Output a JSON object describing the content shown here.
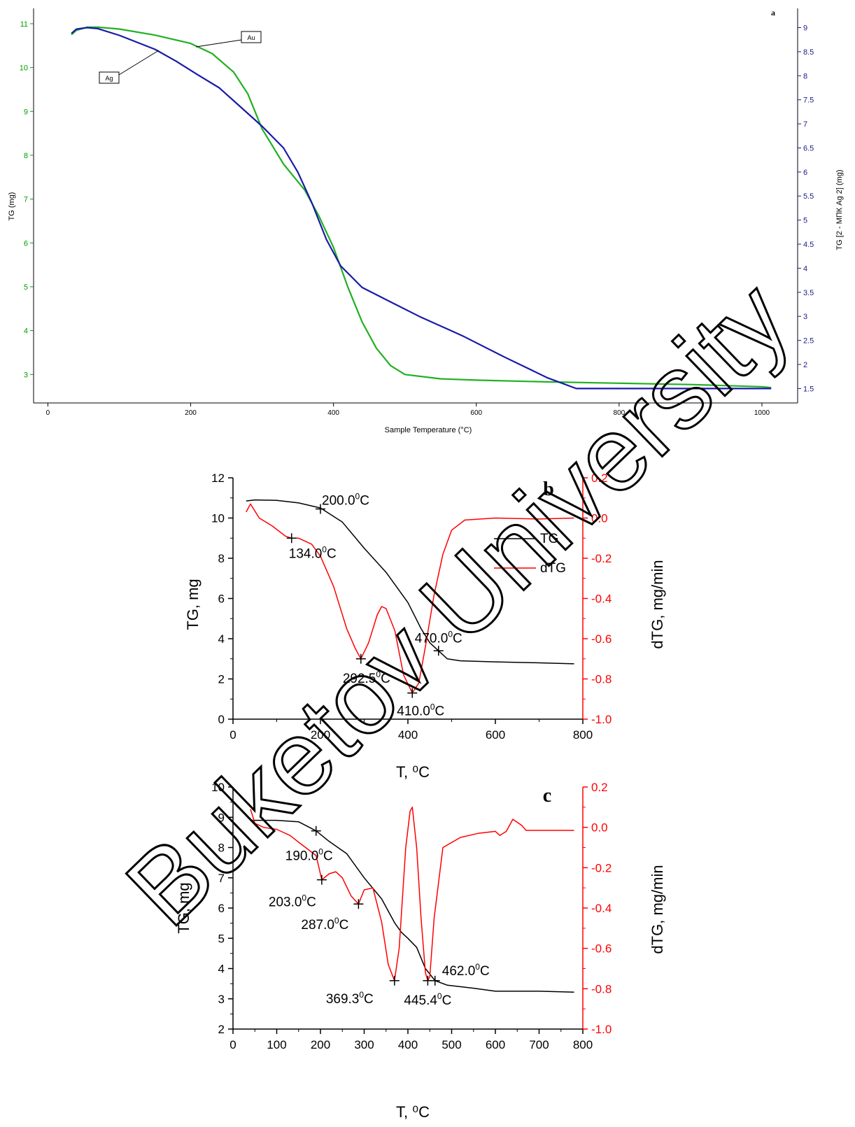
{
  "watermark": "Buketov University",
  "chart_data": [
    {
      "panel": "a",
      "type": "line",
      "xlabel": "Sample Temperature (°C)",
      "ylabel": "TG (mg)",
      "y2label": "TG [2 - МПК Ag 2] (mg)",
      "xlim": [
        -20,
        1050
      ],
      "ylim": [
        2.35,
        11.35
      ],
      "y2lim": [
        1.2,
        9.4
      ],
      "xticks": [
        0,
        200,
        400,
        600,
        800,
        1000
      ],
      "yticks": [
        3,
        4,
        5,
        6,
        7,
        8,
        9,
        10,
        11
      ],
      "y2ticks": [
        1.5,
        2,
        2.5,
        3,
        3.5,
        4,
        4.5,
        5,
        5.5,
        6,
        6.5,
        7,
        7.5,
        8,
        8.5,
        9
      ],
      "colors": {
        "y_axis": "#00a000",
        "y2_axis": "#1a1a8c"
      },
      "series": [
        {
          "name": "Au",
          "axis": "left",
          "color": "#22b022",
          "x": [
            33,
            40,
            55,
            70,
            100,
            150,
            200,
            230,
            260,
            280,
            300,
            330,
            360,
            380,
            400,
            420,
            440,
            460,
            480,
            500,
            550,
            600,
            700,
            800,
            900,
            1000,
            1013
          ],
          "y": [
            10.75,
            10.85,
            10.92,
            10.92,
            10.88,
            10.74,
            10.55,
            10.32,
            9.9,
            9.4,
            8.6,
            7.8,
            7.2,
            6.6,
            5.9,
            5.0,
            4.2,
            3.6,
            3.2,
            3.0,
            2.9,
            2.87,
            2.83,
            2.8,
            2.77,
            2.72,
            2.7
          ]
        },
        {
          "name": "Ag",
          "axis": "right",
          "color": "#1a1aa8",
          "x": [
            33,
            40,
            55,
            70,
            100,
            150,
            180,
            210,
            240,
            270,
            300,
            330,
            350,
            370,
            390,
            410,
            440,
            480,
            520,
            580,
            640,
            700,
            740,
            760,
            800,
            900,
            1000,
            1013
          ],
          "y": [
            8.88,
            8.97,
            9.0,
            8.98,
            8.84,
            8.55,
            8.3,
            8.02,
            7.75,
            7.35,
            6.95,
            6.5,
            6.0,
            5.35,
            4.6,
            4.05,
            3.6,
            3.3,
            3.0,
            2.6,
            2.15,
            1.72,
            1.5,
            1.5,
            1.5,
            1.5,
            1.5,
            1.5
          ]
        }
      ],
      "annotations": [
        {
          "text": "Au",
          "series": "Au"
        },
        {
          "text": "Ag",
          "series": "Ag"
        }
      ]
    },
    {
      "panel": "b",
      "type": "line",
      "xlabel": "T, ⁰C",
      "ylabel": "TG, mg",
      "y2label": "dTG, mg/min",
      "xlim": [
        0,
        800
      ],
      "ylim": [
        0,
        12
      ],
      "y2lim": [
        -1.0,
        0.2
      ],
      "xticks": [
        0,
        200,
        400,
        600,
        800
      ],
      "yticks": [
        0,
        2,
        4,
        6,
        8,
        10,
        12
      ],
      "y2ticks": [
        -1.0,
        -0.8,
        -0.6,
        -0.4,
        -0.2,
        0.0,
        0.2
      ],
      "legend_position": "right-center",
      "series": [
        {
          "name": "TG",
          "axis": "left",
          "color": "#000000",
          "x": [
            30,
            50,
            100,
            150,
            200,
            250,
            300,
            350,
            400,
            430,
            450,
            470,
            490,
            520,
            600,
            700,
            780
          ],
          "y": [
            10.85,
            10.9,
            10.88,
            10.75,
            10.5,
            9.8,
            8.5,
            7.3,
            5.8,
            4.5,
            3.8,
            3.4,
            3.0,
            2.9,
            2.85,
            2.8,
            2.75
          ]
        },
        {
          "name": "dTG",
          "axis": "right",
          "color": "#ff0000",
          "x": [
            30,
            40,
            60,
            90,
            120,
            134,
            150,
            180,
            200,
            230,
            260,
            280,
            292.5,
            310,
            330,
            340,
            350,
            370,
            390,
            410,
            425,
            440,
            460,
            480,
            500,
            530,
            600,
            700,
            780
          ],
          "y": [
            0.03,
            0.07,
            0.0,
            -0.04,
            -0.09,
            -0.1,
            -0.1,
            -0.13,
            -0.19,
            -0.34,
            -0.55,
            -0.65,
            -0.7,
            -0.62,
            -0.48,
            -0.44,
            -0.45,
            -0.56,
            -0.78,
            -0.87,
            -0.82,
            -0.64,
            -0.38,
            -0.18,
            -0.06,
            -0.01,
            0.0,
            -0.005,
            0.0
          ]
        }
      ],
      "annotations": [
        {
          "text": "200.0⁰C",
          "x": 200,
          "y": 10.45,
          "axis": "left"
        },
        {
          "text": "134.0⁰C",
          "x": 134,
          "y": -0.1,
          "axis": "right"
        },
        {
          "text": "292.5⁰C",
          "x": 292.5,
          "y": -0.7,
          "axis": "right"
        },
        {
          "text": "470.0⁰C",
          "x": 470,
          "y": 3.4,
          "axis": "left"
        },
        {
          "text": "410.0⁰C",
          "x": 410,
          "y": -0.87,
          "axis": "right"
        }
      ]
    },
    {
      "panel": "c",
      "type": "line",
      "xlabel": "T, ⁰C",
      "ylabel": "TG, mg",
      "y2label": "dTG, mg/min",
      "xlim": [
        0,
        800
      ],
      "ylim": [
        2,
        10
      ],
      "y2lim": [
        -1.0,
        0.2
      ],
      "xticks": [
        0,
        100,
        200,
        300,
        400,
        500,
        600,
        700,
        800
      ],
      "yticks": [
        2,
        3,
        4,
        5,
        6,
        7,
        8,
        9,
        10
      ],
      "y2ticks": [
        -1.0,
        -0.8,
        -0.6,
        -0.4,
        -0.2,
        0.0,
        0.2
      ],
      "series": [
        {
          "name": "TG",
          "axis": "left",
          "color": "#000000",
          "x": [
            40,
            60,
            100,
            150,
            190,
            220,
            260,
            300,
            340,
            370,
            385,
            400,
            420,
            440,
            462,
            490,
            550,
            600,
            700,
            780
          ],
          "y": [
            8.9,
            8.9,
            8.9,
            8.85,
            8.55,
            8.2,
            7.8,
            7.0,
            6.3,
            5.5,
            5.2,
            5.0,
            4.7,
            4.0,
            3.6,
            3.45,
            3.35,
            3.25,
            3.25,
            3.22
          ]
        },
        {
          "name": "dTG",
          "axis": "right",
          "color": "#ff0000",
          "x": [
            40,
            50,
            70,
            100,
            130,
            160,
            190,
            203,
            220,
            235,
            250,
            270,
            287,
            300,
            320,
            340,
            355,
            369.3,
            380,
            395,
            405,
            410,
            420,
            430,
            440,
            445.4,
            450,
            460,
            480,
            520,
            560,
            600,
            610,
            625,
            640,
            660,
            670,
            700,
            780
          ],
          "y": [
            0.09,
            0.02,
            0.0,
            -0.01,
            -0.04,
            -0.09,
            -0.14,
            -0.26,
            -0.23,
            -0.22,
            -0.25,
            -0.34,
            -0.38,
            -0.31,
            -0.3,
            -0.47,
            -0.68,
            -0.76,
            -0.6,
            -0.1,
            0.08,
            0.1,
            -0.1,
            -0.45,
            -0.72,
            -0.76,
            -0.74,
            -0.45,
            -0.1,
            -0.05,
            -0.03,
            -0.02,
            -0.04,
            -0.02,
            0.04,
            0.01,
            -0.015,
            -0.015,
            -0.015
          ]
        }
      ],
      "annotations": [
        {
          "text": "190.0⁰C",
          "x": 190,
          "y": 8.55,
          "axis": "left"
        },
        {
          "text": "203.0⁰C",
          "x": 203,
          "y": -0.26,
          "axis": "right"
        },
        {
          "text": "287.0⁰C",
          "x": 287,
          "y": -0.38,
          "axis": "right"
        },
        {
          "text": "369.3⁰C",
          "x": 369.3,
          "y": -0.76,
          "axis": "right"
        },
        {
          "text": "445.4⁰C",
          "x": 445.4,
          "y": -0.76,
          "axis": "right"
        },
        {
          "text": "462.0⁰C",
          "x": 462,
          "y": 3.6,
          "axis": "left"
        }
      ]
    }
  ]
}
